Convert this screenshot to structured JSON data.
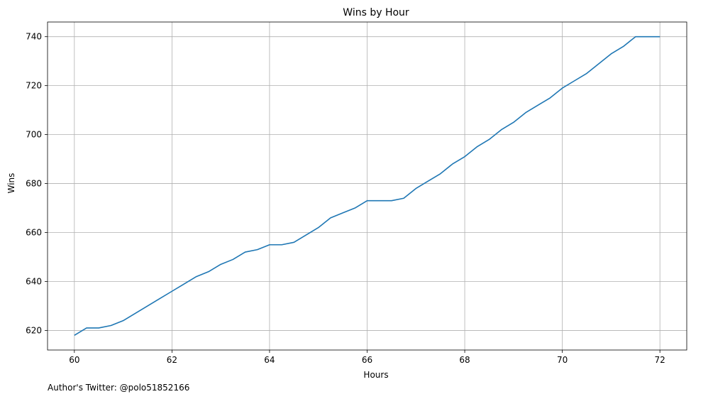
{
  "chart_data": {
    "type": "line",
    "title": "Wins by Hour",
    "xlabel": "Hours",
    "ylabel": "Wins",
    "xlim": [
      59.45,
      72.55
    ],
    "ylim": [
      612,
      746
    ],
    "xticks": [
      60,
      62,
      64,
      66,
      68,
      70,
      72
    ],
    "yticks": [
      620,
      640,
      660,
      680,
      700,
      720,
      740
    ],
    "grid": true,
    "line_color": "#1f77b4",
    "series": [
      {
        "x": [
          60,
          60.25,
          60.5,
          60.75,
          61,
          61.25,
          61.5,
          61.75,
          62,
          62.25,
          62.5,
          62.75,
          63,
          63.25,
          63.5,
          63.75,
          64,
          64.25,
          64.5,
          64.75,
          65,
          65.25,
          65.5,
          65.75,
          66,
          66.25,
          66.5,
          66.75,
          67,
          67.25,
          67.5,
          67.75,
          68,
          68.25,
          68.5,
          68.75,
          69,
          69.25,
          69.5,
          69.75,
          70,
          70.25,
          70.5,
          70.75,
          71,
          71.25,
          71.5,
          71.75,
          72
        ],
        "y": [
          618,
          621,
          621,
          622,
          624,
          627,
          630,
          633,
          636,
          639,
          642,
          644,
          647,
          649,
          652,
          653,
          655,
          655,
          656,
          659,
          662,
          666,
          668,
          670,
          673,
          673,
          673,
          674,
          678,
          681,
          684,
          688,
          691,
          695,
          698,
          702,
          705,
          709,
          712,
          715,
          719,
          722,
          725,
          729,
          733,
          736,
          740,
          740,
          740
        ]
      }
    ]
  },
  "footnote": "Author's Twitter: @polo51852166"
}
